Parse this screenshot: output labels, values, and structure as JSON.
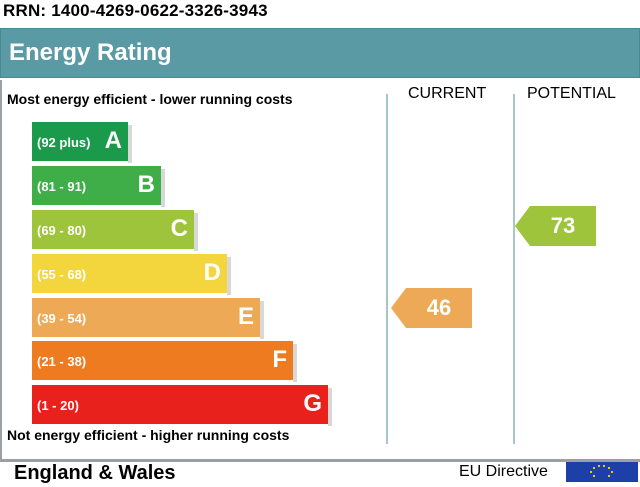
{
  "rrn": "RRN: 1400-4269-0622-3326-3943",
  "header": {
    "title": "Energy Rating"
  },
  "captions": {
    "top": "Most energy efficient - lower running costs",
    "bottom": "Not energy efficient - higher running costs"
  },
  "columns": {
    "current": "CURRENT",
    "potential": "POTENTIAL"
  },
  "bands": [
    {
      "range": "(92 plus)",
      "letter": "A",
      "color": "#1a9a4a"
    },
    {
      "range": "(81 - 91)",
      "letter": "B",
      "color": "#3fae48"
    },
    {
      "range": "(69 - 80)",
      "letter": "C",
      "color": "#9ec43c"
    },
    {
      "range": "(55 - 68)",
      "letter": "D",
      "color": "#f3d53d"
    },
    {
      "range": "(39 - 54)",
      "letter": "E",
      "color": "#eea957"
    },
    {
      "range": "(21 - 38)",
      "letter": "F",
      "color": "#ee7b1f"
    },
    {
      "range": "(1 - 20)",
      "letter": "G",
      "color": "#e8211c"
    }
  ],
  "ratings": {
    "current": {
      "value": "46",
      "color": "#eea957"
    },
    "potential": {
      "value": "73",
      "color": "#9ec43c"
    }
  },
  "footer": {
    "left": "England & Wales",
    "directive": "EU Directive"
  }
}
